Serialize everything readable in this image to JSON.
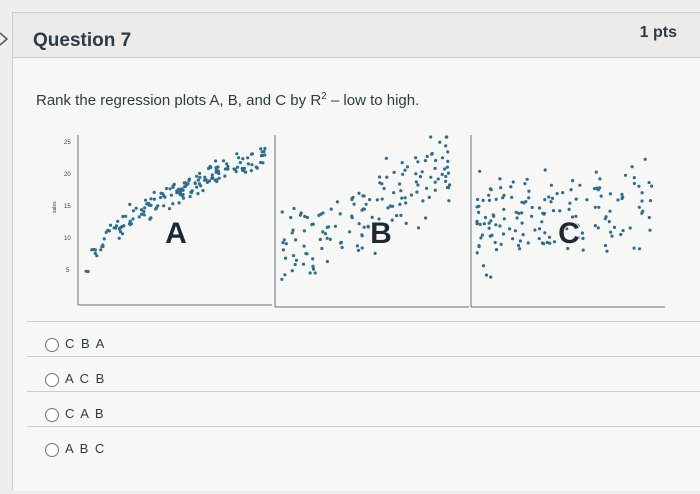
{
  "question": {
    "title": "Question 7",
    "points": "1 pts",
    "prompt_before": "Rank the regression plots A, B, and C by R",
    "prompt_sup": "2",
    "prompt_after": " – low to high."
  },
  "plots": {
    "ylabel": "sales",
    "yticks": [
      "25",
      "20",
      "15",
      "10",
      "5"
    ],
    "labels": [
      "A",
      "B",
      "C"
    ]
  },
  "answers": [
    {
      "label": "C B A",
      "selected": false
    },
    {
      "label": "A C B",
      "selected": false
    },
    {
      "label": "C A B",
      "selected": false
    },
    {
      "label": "A B C",
      "selected": false
    }
  ],
  "colors": {
    "points": "#2f6d8f",
    "text": "#2d3b45",
    "border": "#c7cdd1"
  },
  "icons": {
    "sidebar_chevron": "chevron-right-icon"
  }
}
